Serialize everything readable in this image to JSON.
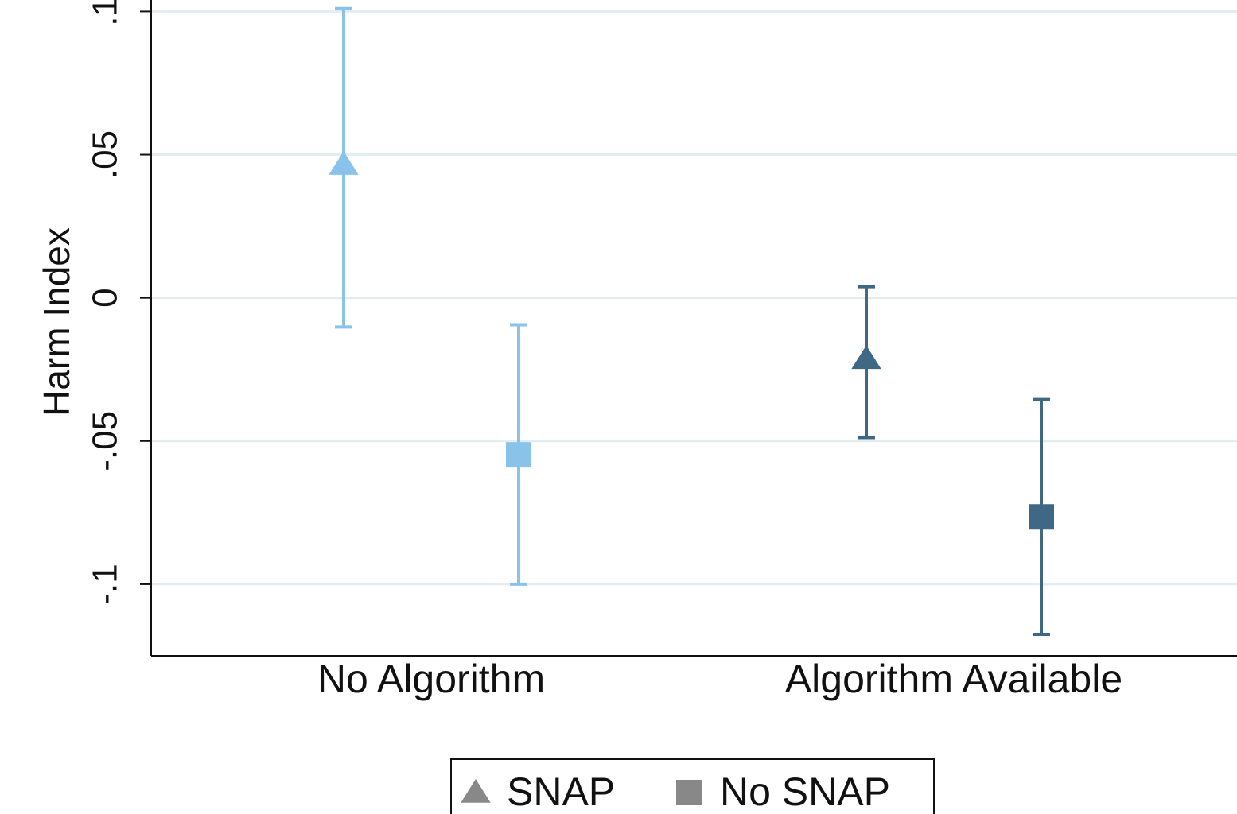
{
  "chart_data": {
    "type": "errorbar",
    "y_label": "Harm Index",
    "categories": [
      "No Algorithm",
      "Algorithm Available"
    ],
    "category_colors": [
      "#8ac3ea",
      "#3e6883"
    ],
    "legend_marker_color": "#888888",
    "series": [
      {
        "name": "SNAP",
        "marker": "triangle",
        "values": [
          0.0465,
          -0.0213
        ],
        "ci_low": [
          -0.0102,
          -0.0488
        ],
        "ci_high": [
          0.101,
          0.0039
        ]
      },
      {
        "name": "No SNAP",
        "marker": "square",
        "values": [
          -0.0548,
          -0.0765
        ],
        "ci_low": [
          -0.1,
          -0.1175
        ],
        "ci_high": [
          -0.0094,
          -0.0355
        ]
      }
    ],
    "ylim": [
      -0.125,
      0.104
    ],
    "yticks": [
      {
        "value": -0.1,
        "label": "-.1"
      },
      {
        "value": -0.05,
        "label": "-.05"
      },
      0,
      {
        "value": 0.05,
        "label": ".05"
      },
      {
        "value": 0.1,
        "label": ".1"
      }
    ],
    "grid": true,
    "legend": "bottom"
  }
}
